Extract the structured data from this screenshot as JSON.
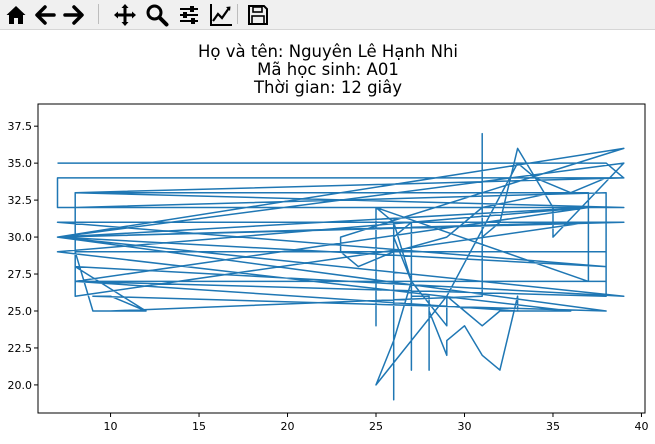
{
  "window": {
    "toolbar": {
      "buttons": [
        {
          "name": "home-icon",
          "label": "Home"
        },
        {
          "name": "back-icon",
          "label": "Back"
        },
        {
          "name": "forward-icon",
          "label": "Forward"
        },
        {
          "name": "pan-icon",
          "label": "Pan"
        },
        {
          "name": "zoom-icon",
          "label": "Zoom"
        },
        {
          "name": "configure-subplots-icon",
          "label": "Configure subplots"
        },
        {
          "name": "edit-axis-icon",
          "label": "Edit axis"
        },
        {
          "name": "save-icon",
          "label": "Save"
        }
      ]
    }
  },
  "chart_data": {
    "type": "line",
    "title_lines": [
      "Họ và tên: Nguyên Lê Hạnh Nhi",
      "Mã học sinh: A01",
      "Thời gian: 12 giây"
    ],
    "xlabel": "",
    "ylabel": "",
    "xlim": [
      5.9,
      40.2
    ],
    "ylim": [
      18.1,
      39.0
    ],
    "xticks": [
      10,
      15,
      20,
      25,
      30,
      35,
      40
    ],
    "xtick_labels": [
      "10",
      "15",
      "20",
      "25",
      "30",
      "35",
      "40"
    ],
    "yticks": [
      20.0,
      22.5,
      25.0,
      27.5,
      30.0,
      32.5,
      35.0,
      37.5
    ],
    "ytick_labels": [
      "20.0",
      "22.5",
      "25.0",
      "27.5",
      "30.0",
      "32.5",
      "35.0",
      "37.5"
    ],
    "grid": false,
    "color": "#1f77b4",
    "series": [
      {
        "x": [
          7,
          38,
          39,
          7,
          7,
          39,
          8,
          8,
          37,
          7,
          39,
          8,
          12,
          9,
          8,
          38,
          38,
          8,
          37,
          7,
          39,
          7,
          38,
          7,
          38,
          9,
          10,
          12,
          10,
          31,
          31,
          31,
          32,
          33,
          34,
          36,
          38,
          39,
          8,
          37,
          37,
          8,
          38,
          38,
          8,
          33,
          34,
          36,
          36,
          7,
          37,
          37,
          25,
          25,
          25,
          26,
          26,
          26,
          27,
          27,
          27,
          28,
          28,
          28,
          29,
          29,
          30,
          31,
          32,
          33,
          33,
          32,
          31,
          30,
          29,
          29,
          27,
          26,
          26,
          27,
          26,
          25,
          29,
          33,
          34,
          35,
          35,
          39,
          7,
          39,
          23,
          23,
          24,
          26,
          29,
          31,
          35
        ],
        "y": [
          35,
          35,
          34,
          34,
          32,
          32,
          33,
          26,
          31,
          30,
          26,
          28,
          25,
          25,
          29,
          29,
          26,
          27,
          32,
          30,
          31,
          31,
          28,
          30,
          25,
          26,
          26,
          25,
          25,
          26,
          37,
          30,
          31,
          36,
          34,
          33,
          34,
          34,
          33,
          33,
          32,
          32,
          33,
          27,
          27,
          25,
          25,
          25,
          25,
          29,
          32,
          27,
          32,
          24,
          32,
          31,
          19,
          30,
          31,
          21,
          26,
          26,
          21,
          25,
          22,
          23,
          24,
          22,
          21,
          26,
          25,
          25,
          24,
          25,
          26,
          24,
          27,
          30,
          31,
          27,
          23,
          20,
          26,
          35,
          34,
          32,
          30,
          35,
          30,
          36,
          30,
          29,
          28,
          29,
          30,
          32,
          33
        ]
      }
    ]
  }
}
